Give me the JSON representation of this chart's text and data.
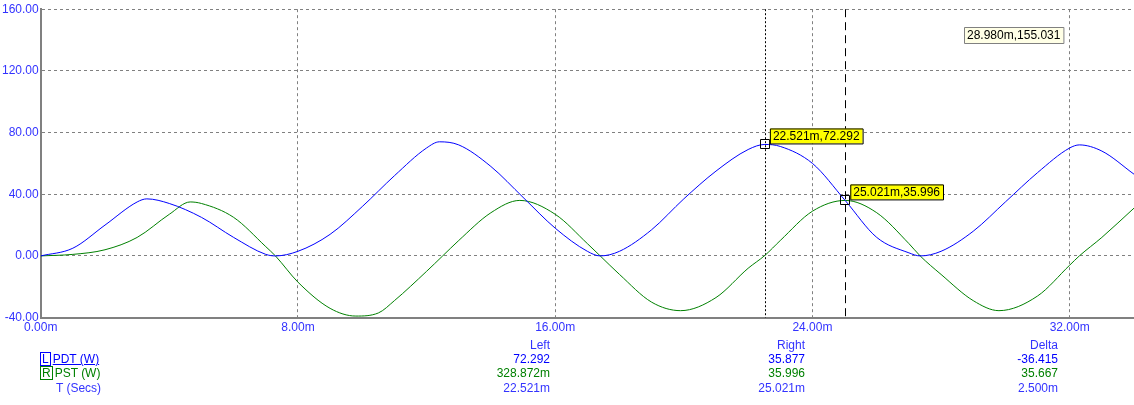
{
  "chart_data": {
    "type": "line",
    "xlim": [
      0,
      34
    ],
    "ylim": [
      -40,
      160
    ],
    "xticks": [
      {
        "value": 0,
        "label": "0.00m"
      },
      {
        "value": 8,
        "label": "8.00m"
      },
      {
        "value": 16,
        "label": "16.00m"
      },
      {
        "value": 24,
        "label": "24.00m"
      },
      {
        "value": 32,
        "label": "32.00m"
      }
    ],
    "yticks": [
      {
        "value": -40,
        "label": "-40.00"
      },
      {
        "value": 0,
        "label": "0.00"
      },
      {
        "value": 40,
        "label": "40.00"
      },
      {
        "value": 80,
        "label": "80.00"
      },
      {
        "value": 120,
        "label": "120.00"
      },
      {
        "value": 160,
        "label": "160.00"
      }
    ],
    "grid": true,
    "legend": "bottom left",
    "marker": "none",
    "series": [
      {
        "name": "PDT (W)",
        "color": "#0000ff",
        "x": [
          0,
          1,
          2,
          3,
          3.3,
          4,
          5,
          6,
          7,
          7.3,
          8,
          9,
          10,
          11,
          12,
          12.4,
          13,
          14,
          15,
          16,
          17,
          17.4,
          18,
          19,
          20,
          21,
          22,
          22.521,
          23,
          24,
          25.021,
          26,
          27,
          27.35,
          28,
          29,
          30,
          31,
          32,
          32.3,
          33,
          34
        ],
        "values": [
          0,
          5,
          20,
          35,
          37,
          34,
          25,
          12,
          1,
          0,
          3,
          14,
          32,
          52,
          70,
          74,
          72,
          58,
          38,
          18,
          3,
          0,
          3,
          17,
          37,
          55,
          69,
          72.292,
          71,
          60,
          35.877,
          12,
          2,
          0,
          3,
          16,
          35,
          54,
          70,
          72,
          68,
          53
        ]
      },
      {
        "name": "PST (W)",
        "color": "#008000",
        "x": [
          0,
          1,
          2,
          3,
          4,
          4.65,
          5,
          6,
          7,
          7.3,
          8,
          9,
          9.8,
          10.5,
          11,
          12,
          12.5,
          13,
          14,
          14.9,
          16,
          17,
          17.4,
          18,
          19,
          19.9,
          21,
          22,
          22.521,
          23,
          24,
          25.021,
          26,
          27,
          27.35,
          28,
          29,
          29.8,
          31,
          32,
          32.3,
          33,
          34
        ],
        "values": [
          0,
          1,
          4,
          12,
          27,
          35,
          34,
          25,
          6,
          0,
          -17,
          -34,
          -39,
          -37,
          -29,
          -10,
          0,
          10,
          28,
          36,
          27,
          8,
          0,
          -12,
          -30,
          -35.5,
          -27,
          -8,
          0.328872,
          10,
          29,
          35.996,
          28,
          8,
          0,
          -12,
          -29,
          -35.5,
          -26,
          -6,
          0,
          12,
          31
        ]
      }
    ],
    "ref_lines": [
      {
        "axis": "x",
        "value": 22.521,
        "color": "#000000",
        "line_style": "dotted"
      },
      {
        "axis": "x",
        "value": 25.021,
        "color": "#000000",
        "line_style": "dashed"
      }
    ],
    "annotations": [
      "28.980m,155.031",
      {
        "text": "22.521m,72.292",
        "x": 22.521,
        "y": 72.292
      },
      {
        "text": "25.021m,35.996",
        "x": 25.021,
        "y": 35.996
      },
      "Left",
      "Right",
      "Delta",
      "72.292",
      "35.877",
      "-36.415",
      "328.872m",
      "35.996",
      "35.667",
      "T (Secs)",
      "22.521m",
      "25.021m",
      "2.500m",
      "L",
      "R"
    ]
  }
}
